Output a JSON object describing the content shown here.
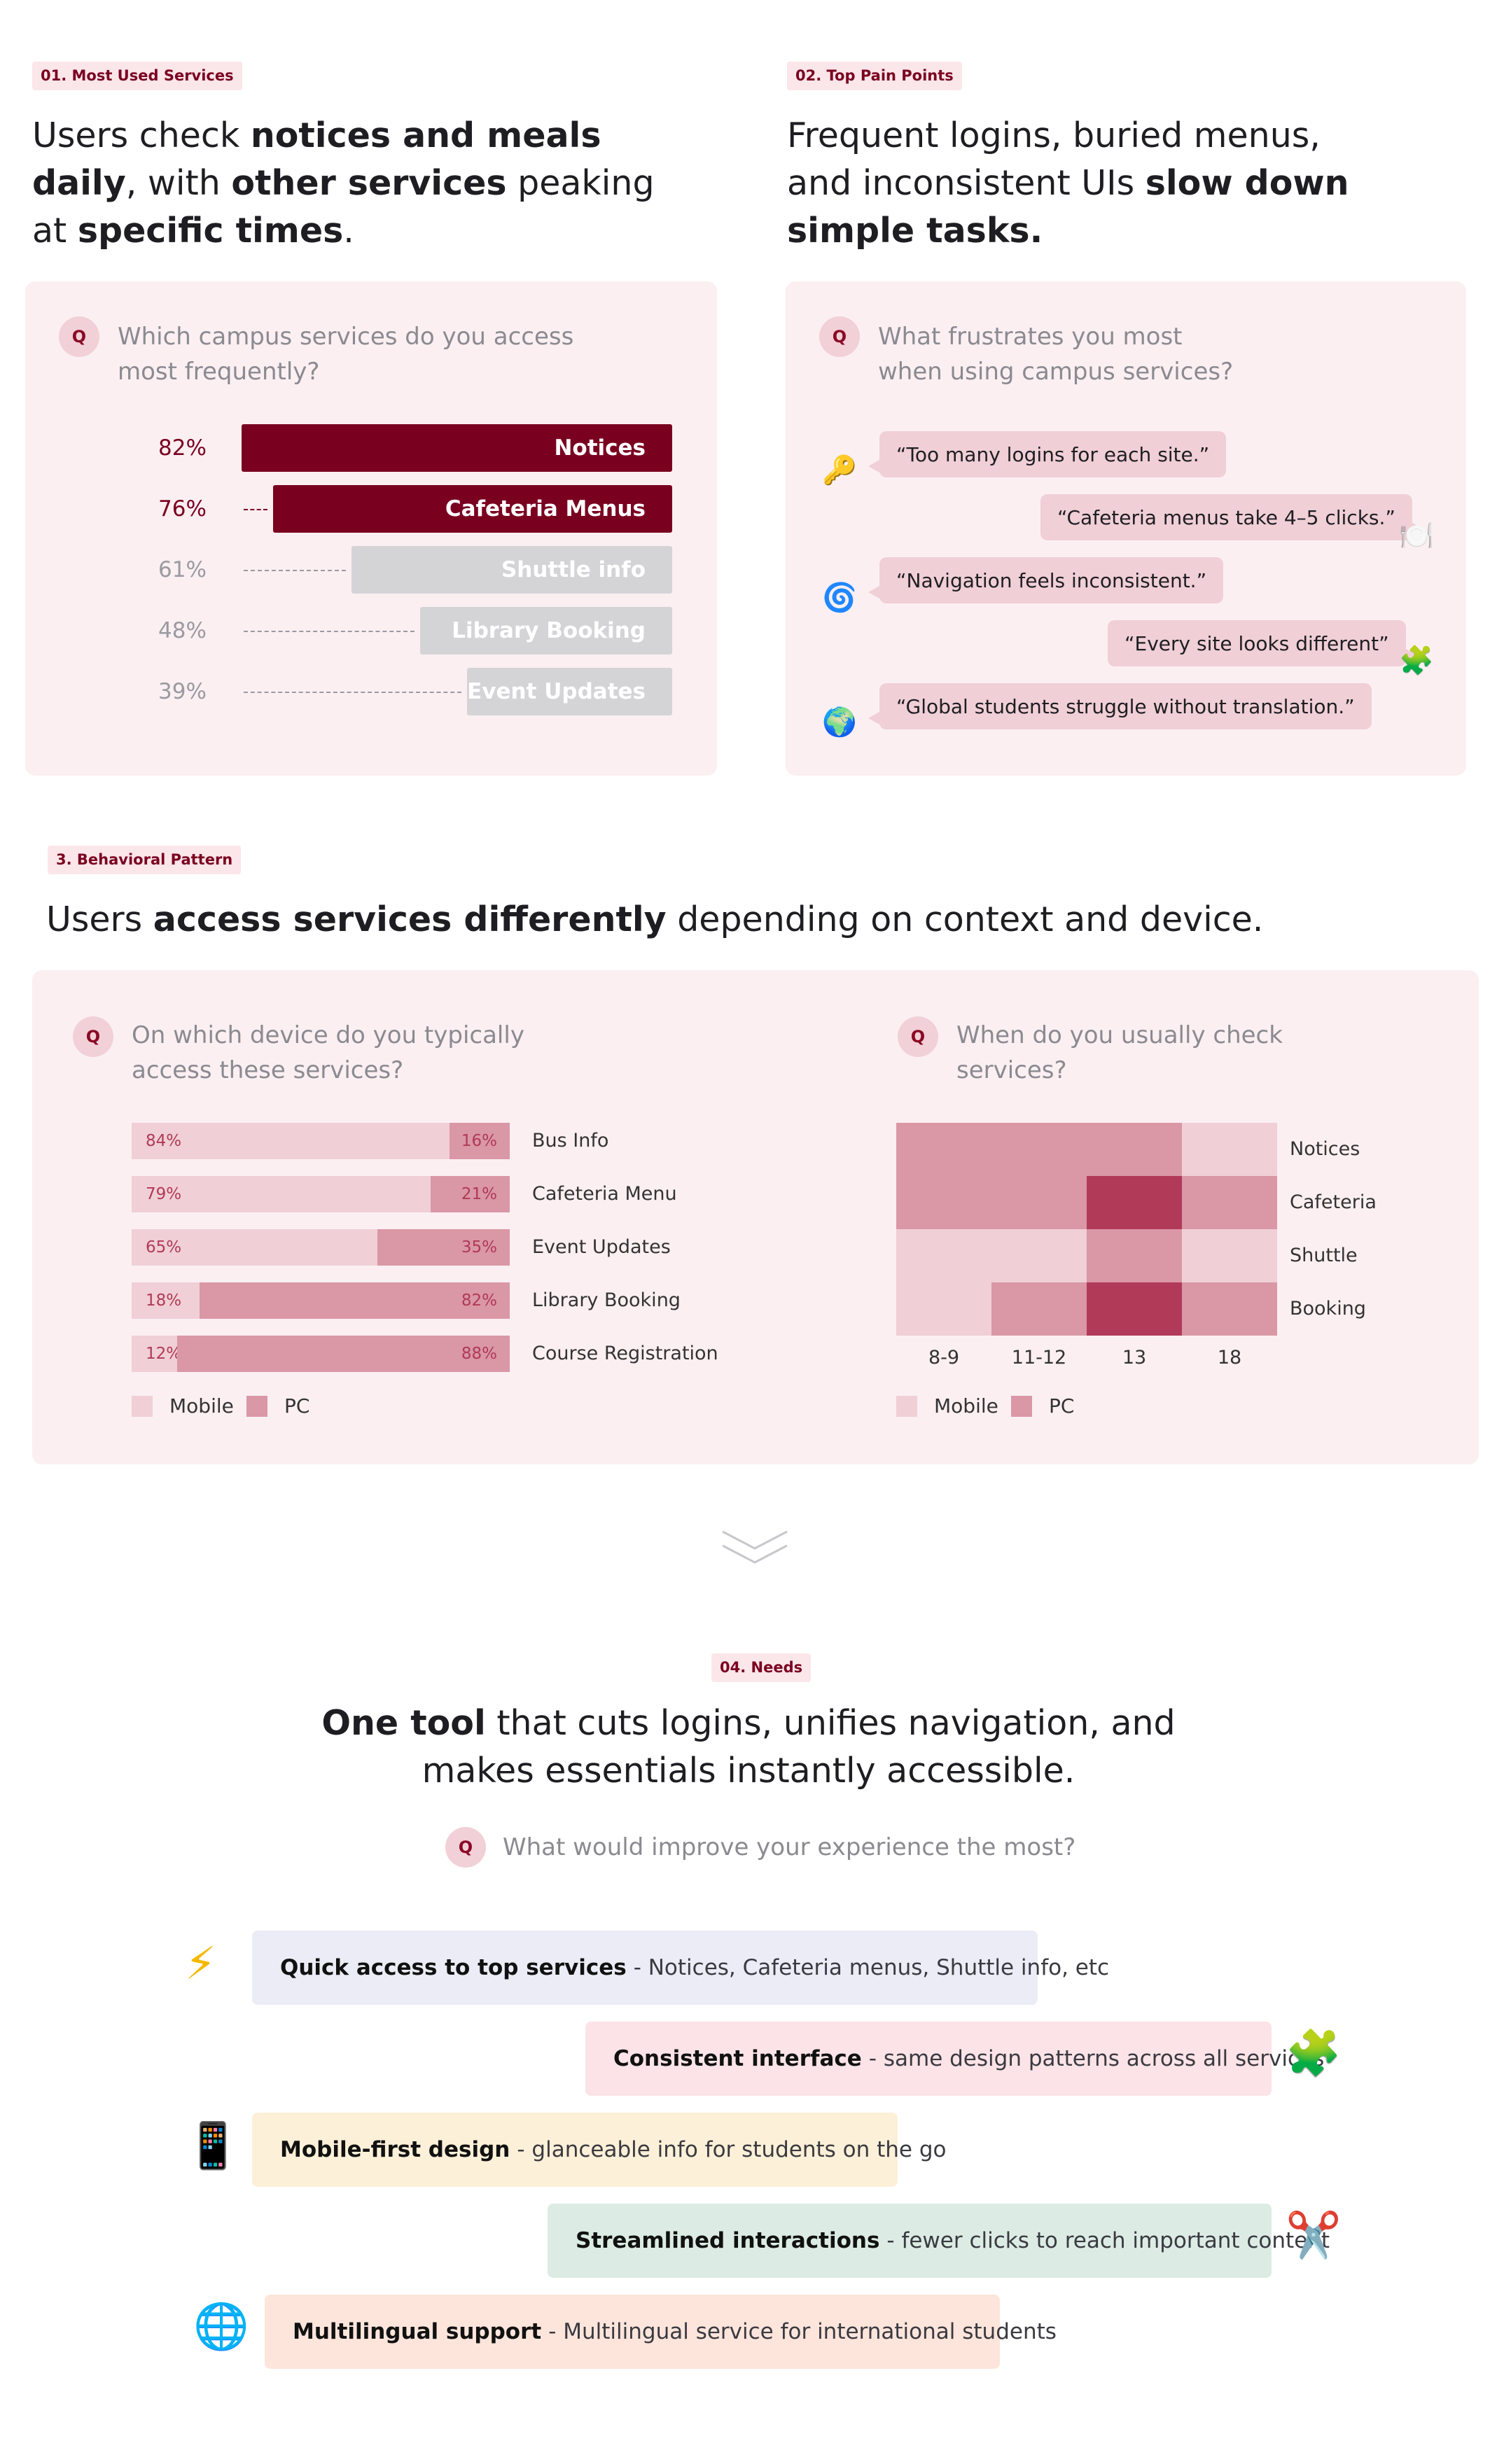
{
  "section1": {
    "tag": "01. Most Used Services",
    "headline": {
      "p1": "Users check ",
      "b1": "notices and meals",
      "b2": "daily",
      "p2": ", with ",
      "b3": "other services",
      "p3": " peaking",
      "p4": "at ",
      "b4": "specific times",
      "p5": "."
    },
    "question": {
      "badge": "Q",
      "line1": "Which campus services do you access",
      "line2": "most frequently?"
    }
  },
  "section2": {
    "tag": "02. Top Pain Points",
    "headline": {
      "p1": "Frequent logins, buried menus,",
      "p2": "and inconsistent UIs ",
      "b1": "slow down",
      "b2": "simple tasks."
    },
    "question": {
      "badge": "Q",
      "line1": "What frustrates you most",
      "line2": "when using campus services?"
    },
    "quotes": [
      {
        "text": "“Too many logins for each site.”",
        "icon": "key-icon",
        "glyph": "🔑"
      },
      {
        "text": "“Cafeteria menus take 4–5 clicks.”",
        "icon": "plate-icon",
        "glyph": "🍽️"
      },
      {
        "text": "“Navigation feels inconsistent.”",
        "icon": "cyclone-icon",
        "glyph": "🌀"
      },
      {
        "text": "“Every site looks different”",
        "icon": "puzzle-icon",
        "glyph": "🧩"
      },
      {
        "text": "“Global students struggle without translation.”",
        "icon": "globe-icon",
        "glyph": "🌍"
      }
    ]
  },
  "section3": {
    "tag": "3. Behavioral Pattern",
    "headline": {
      "p1": "Users ",
      "b1": "access services differently",
      "p2": " depending on context and device."
    },
    "device_question": {
      "badge": "Q",
      "line1": "On which device do you typically",
      "line2": "access these services?"
    },
    "time_question": {
      "badge": "Q",
      "line1": "When do you usually check",
      "line2": "services?"
    },
    "legend": {
      "mobile": "Mobile",
      "pc": "PC"
    }
  },
  "section4": {
    "tag": "04. Needs",
    "headline": {
      "b1": "One tool",
      "p1": " that cuts logins, unifies navigation, and",
      "p2": "makes essentials instantly accessible."
    },
    "question": {
      "badge": "Q",
      "text": "What would improve your experience the most?"
    },
    "needs": [
      {
        "title": "Quick access to top services",
        "desc": "- Notices, Cafeteria menus, Shuttle info, etc",
        "icon": "lightning-icon",
        "glyph": "⚡",
        "color": "#ececf6"
      },
      {
        "title": "Consistent interface",
        "desc": "- same design patterns across all services",
        "icon": "puzzle-icon",
        "glyph": "🧩",
        "color": "#fbe3e7"
      },
      {
        "title": "Mobile-first design",
        "desc": "- glanceable info for students on the go",
        "icon": "phone-icon",
        "glyph": "📱",
        "color": "#fdf0d8"
      },
      {
        "title": "Streamlined interactions",
        "desc": "- fewer clicks to reach important content",
        "icon": "scissors-icon",
        "glyph": "✂️",
        "color": "#dcece5"
      },
      {
        "title": "Multilingual support",
        "desc": "- Multilingual service for international students",
        "icon": "globe-icon",
        "glyph": "🌐",
        "color": "#fde5dc"
      }
    ]
  },
  "colors": {
    "dark": "#7a0020",
    "gray": "#d4d4d7",
    "mobile": "#f0cfd6",
    "pc": "#da97a6"
  },
  "chart_data": [
    {
      "type": "bar",
      "title": "Which campus services do you access most frequently?",
      "categories": [
        "Notices",
        "Cafeteria Menus",
        "Shuttle info",
        "Library Booking",
        "Event Updates"
      ],
      "values": [
        82,
        76,
        61,
        48,
        39
      ],
      "labels": [
        "82%",
        "76%",
        "61%",
        "48%",
        "39%"
      ],
      "highlighted": [
        true,
        true,
        false,
        false,
        false
      ],
      "orientation": "horizontal",
      "xlim": [
        0,
        100
      ]
    },
    {
      "type": "bar",
      "title": "On which device do you typically access these services?",
      "stacked": true,
      "orientation": "horizontal",
      "categories": [
        "Bus Info",
        "Cafeteria Menu",
        "Event Updates",
        "Library Booking",
        "Course Registration"
      ],
      "series": [
        {
          "name": "Mobile",
          "values": [
            84,
            79,
            65,
            18,
            12
          ],
          "labels": [
            "84%",
            "79%",
            "65%",
            "18%",
            "12%"
          ]
        },
        {
          "name": "PC",
          "values": [
            16,
            21,
            35,
            82,
            88
          ],
          "labels": [
            "16%",
            "21%",
            "35%",
            "82%",
            "88%"
          ]
        }
      ]
    },
    {
      "type": "heatmap",
      "title": "When do you usually check services?",
      "x": [
        "8-9",
        "11-12",
        "13",
        "18"
      ],
      "y": [
        "Notices",
        "Cafeteria",
        "Shuttle",
        "Booking"
      ],
      "values": [
        [
          2,
          2,
          2,
          1
        ],
        [
          2,
          2,
          3,
          2
        ],
        [
          1,
          1,
          2,
          1
        ],
        [
          1,
          2,
          3,
          2
        ]
      ],
      "legend": [
        "Mobile",
        "PC"
      ]
    }
  ]
}
